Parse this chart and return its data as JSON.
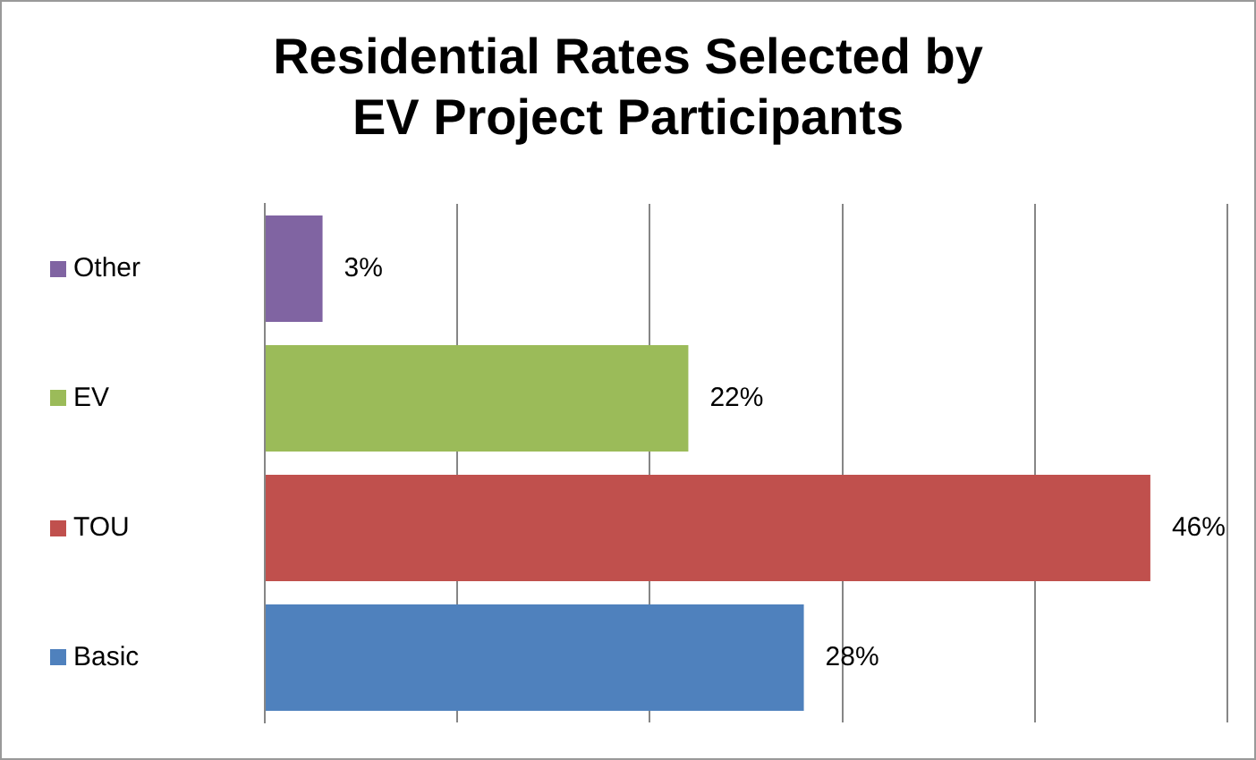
{
  "chart_data": {
    "type": "bar",
    "orientation": "horizontal",
    "title": "Residential Rates Selected by EV Project Participants",
    "categories": [
      "Other",
      "EV",
      "TOU",
      "Basic"
    ],
    "values": [
      3,
      22,
      46,
      28
    ],
    "colors": [
      "#8064a2",
      "#9bbb59",
      "#c0504d",
      "#4f81bd"
    ],
    "value_labels": [
      "3%",
      "22%",
      "46%",
      "28%"
    ],
    "xlim": [
      0,
      50
    ],
    "xticks": [
      {
        "value": 0,
        "label": null
      },
      {
        "value": 10,
        "label": null
      },
      {
        "value": 20,
        "label": null
      },
      {
        "value": 30,
        "label": null
      },
      {
        "value": 40,
        "label": null
      },
      {
        "value": 50,
        "label": null
      }
    ],
    "grid": "x",
    "tick_labels": "y",
    "legend": false
  }
}
